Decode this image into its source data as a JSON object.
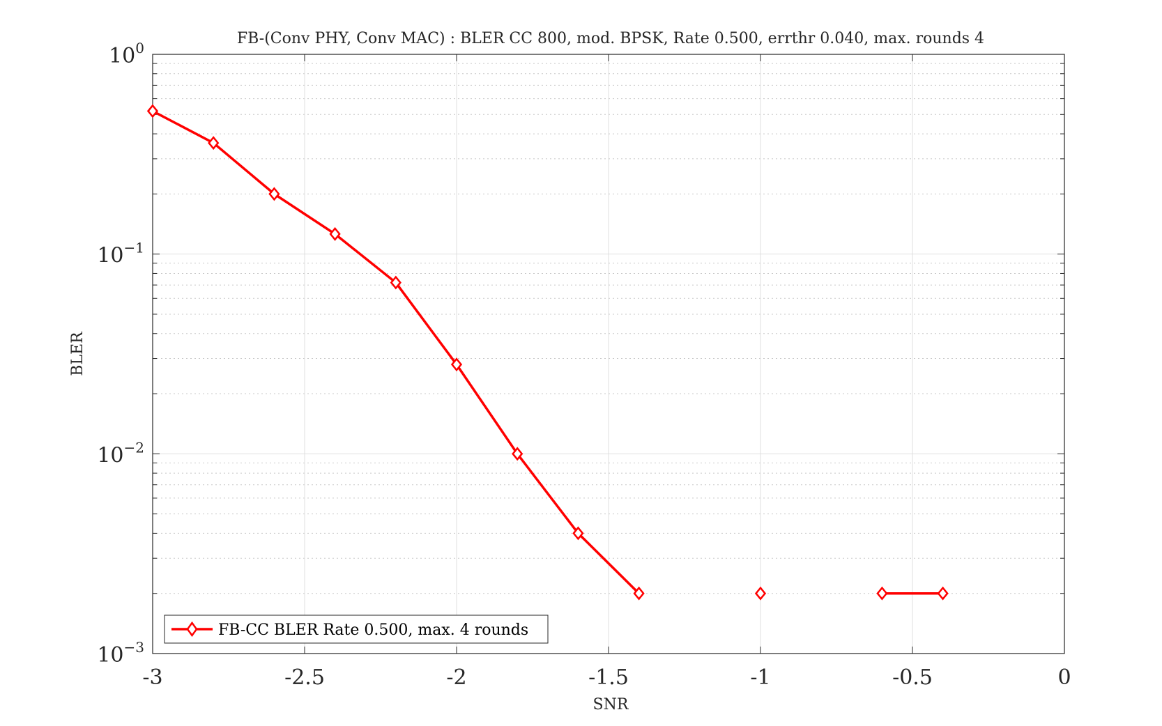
{
  "chart_data": {
    "type": "line",
    "title": "FB-(Conv PHY, Conv MAC) : BLER CC 800, mod. BPSK, Rate 0.500, errthr 0.040, max. rounds 4",
    "xlabel": "SNR",
    "ylabel": "BLER",
    "xlim": [
      -3,
      0
    ],
    "ylim": [
      0.001,
      1
    ],
    "yscale": "log",
    "grid": true,
    "minor_grid": true,
    "legend_position": "bottom-left",
    "x_ticks": [
      -3,
      -2.5,
      -2,
      -1.5,
      -1,
      -0.5,
      0
    ],
    "x_tick_labels": [
      "-3",
      "-2.5",
      "-2",
      "-1.5",
      "-1",
      "-0.5",
      "0"
    ],
    "y_ticks": [
      {
        "value": 1,
        "base": "10",
        "exp": "0"
      },
      {
        "value": 0.1,
        "base": "10",
        "exp": "−1"
      },
      {
        "value": 0.01,
        "base": "10",
        "exp": "−2"
      },
      {
        "value": 0.001,
        "base": "10",
        "exp": "−3"
      }
    ],
    "series": [
      {
        "name": "FB-CC BLER Rate 0.500, max. 4 rounds",
        "color": "#ff0000",
        "marker": "diamond",
        "x": [
          -3.0,
          -2.8,
          -2.6,
          -2.4,
          -2.2,
          -2.0,
          -1.8,
          -1.6,
          -1.4,
          -1.2,
          -1.0,
          -0.8,
          -0.6,
          -0.4
        ],
        "y": [
          0.52,
          0.36,
          0.2,
          0.126,
          0.072,
          0.028,
          0.01,
          0.004,
          0.002,
          null,
          0.002,
          null,
          0.002,
          0.002
        ]
      }
    ]
  }
}
